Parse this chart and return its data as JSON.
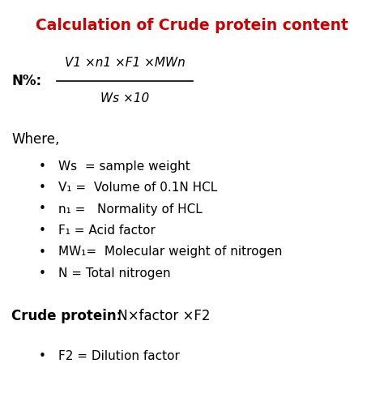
{
  "title": "Calculation of Crude protein content",
  "title_color": "#cc0000",
  "bg_color": "#ffffff",
  "formula_box_color": "#e8e8e8",
  "text_color": "#000000",
  "fig_width": 4.74,
  "fig_height": 5.17,
  "dpi": 100,
  "formula_label": "N%:",
  "formula_numerator": "V1 ×n1 ×F1 ×MWn",
  "formula_denominator": "Ws ×10",
  "where_text": "Where,",
  "bullet_items": [
    "Ws  = sample weight",
    "V₁ =  Volume of 0.1N HCL",
    "n₁ =   Normality of HCL",
    "F₁ = Acid factor",
    "MW₁=  Molecular weight of nitrogen",
    "N = Total nitrogen"
  ],
  "crude_protein_label": "Crude protein:",
  "crude_protein_formula": " N×factor ×F2",
  "crude_protein_bullet": "F2 = Dilution factor"
}
